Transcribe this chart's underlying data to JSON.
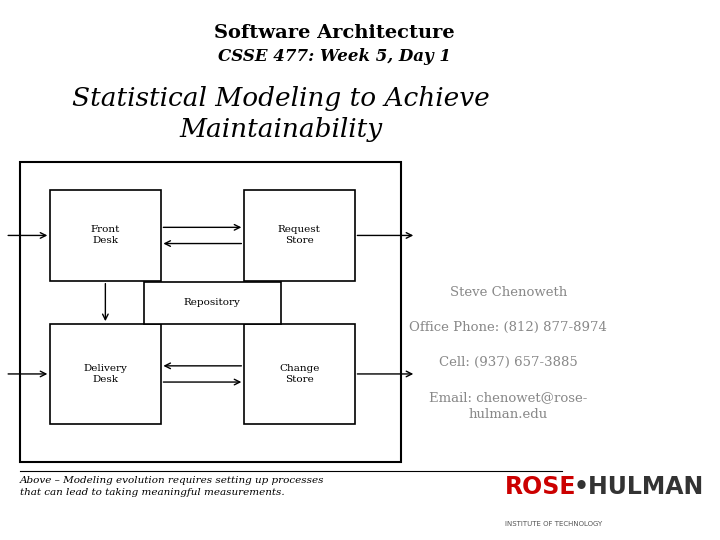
{
  "title_line1": "Software Architecture",
  "title_line2": "CSSE 477: Week 5, Day 1",
  "subtitle": "Statistical Modeling to Achieve\nMaintainability",
  "contact_name": "Steve Chenoweth",
  "contact_phone": "Office Phone: (812) 877-8974",
  "contact_cell": "Cell: (937) 657-3885",
  "contact_email": "Email: chenowet@rose-\nhulman.edu",
  "caption": "Above – Modeling evolution requires setting up processes\nthat can lead to taking meaningful measurements.",
  "bg_color": "#ffffff",
  "text_color": "#000000",
  "gray_color": "#888888",
  "logo_red": "#cc0000",
  "logo_dark": "#333333",
  "logo_sub": "#555555"
}
